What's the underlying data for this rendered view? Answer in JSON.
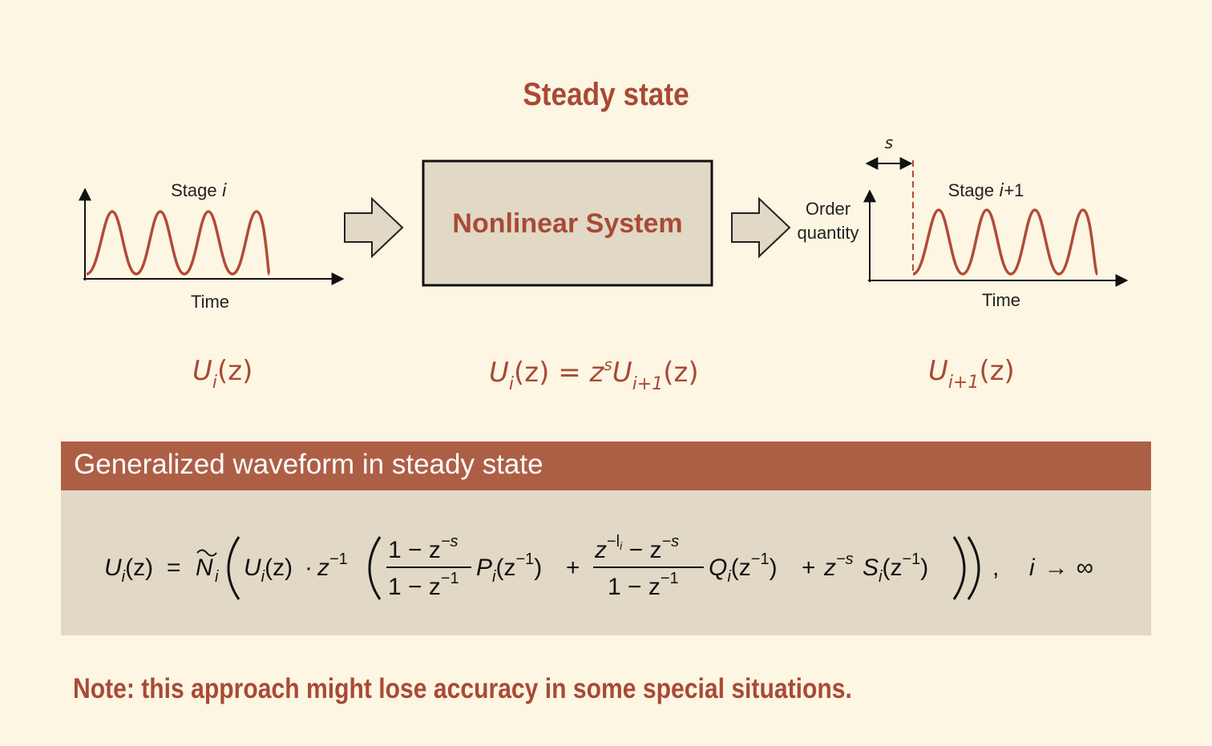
{
  "title": "Steady state",
  "left_panel": {
    "stage_prefix": "Stage ",
    "stage_var": "i",
    "time_label": "Time"
  },
  "system": {
    "label": "Nonlinear System"
  },
  "right_panel": {
    "shift_label": "s",
    "order_line1": "Order",
    "order_line2": "quantity",
    "stage_prefix": "Stage ",
    "stage_var": "i",
    "stage_suffix": "+1",
    "time_label": "Time"
  },
  "equations": {
    "left": {
      "U": "U",
      "sub": "i",
      "arg": "(z)"
    },
    "middle": {
      "U": "U",
      "sub": "i",
      "arg": "(z)",
      "eq": " = ",
      "z": "z",
      "sup": "s",
      "U2": "U",
      "sub2": "i+1",
      "arg2": "(z)"
    },
    "right": {
      "U": "U",
      "sub": "i+1",
      "arg": "(z)"
    }
  },
  "section": {
    "title": "Generalized waveform in steady state"
  },
  "formula": {
    "lhs_U": "U",
    "lhs_sub": "i",
    "lhs_arg": "(z)",
    "eq": "=",
    "N": "N",
    "N_sub": "i",
    "U2": "U",
    "U2_sub": "i",
    "U2_arg": "(z)",
    "dot": "·",
    "z": "z",
    "zexp": "−1",
    "frac1_num": "1 − z",
    "frac1_num_exp": "−s",
    "frac1_den": "1 − z",
    "frac1_den_exp": "−1",
    "P": "P",
    "P_sub": "i",
    "P_arg": "(z",
    "P_exp": "−1",
    "close": ")",
    "plus": "+",
    "frac2_num_a": "z",
    "frac2_num_a_exp": "−l",
    "frac2_num_a_sub": "i",
    "frac2_num_b": " − z",
    "frac2_num_b_exp": "−s",
    "frac2_den": "1 − z",
    "frac2_den_exp": "−1",
    "Q": "Q",
    "Q_sub": "i",
    "Q_arg": "(z",
    "Q_exp": "−1",
    "plus2": "+",
    "zs": "z",
    "zs_exp": "−s",
    "S": "S",
    "S_sub": "i",
    "S_arg": "(z",
    "S_exp": "−1",
    "comma": ",",
    "limit_i": "i",
    "limit_arrow": "→",
    "limit_inf": "∞"
  },
  "note": "Note: this approach might lose accuracy in some special situations.",
  "colors": {
    "accent": "#a84a35",
    "band": "#ad5f46",
    "box": "#e1d8c6",
    "background": "#fdf6e3"
  }
}
